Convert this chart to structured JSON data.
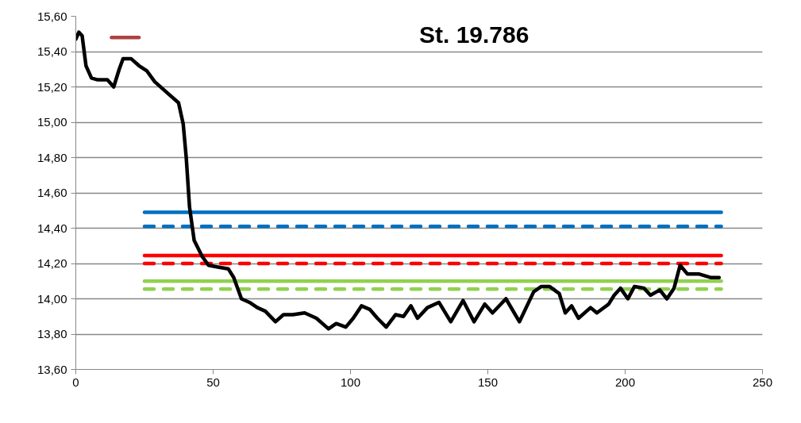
{
  "chart_data": {
    "type": "line",
    "title": "St. 19.786",
    "xlim": [
      0,
      250
    ],
    "ylim": [
      13.6,
      15.6
    ],
    "xticks": [
      0,
      50,
      100,
      150,
      200,
      250
    ],
    "yticks": [
      {
        "value": 13.6,
        "label": "13,60"
      },
      {
        "value": 13.8,
        "label": "13,80"
      },
      {
        "value": 14.0,
        "label": "14,00"
      },
      {
        "value": 14.2,
        "label": "14,20"
      },
      {
        "value": 14.4,
        "label": "14,40"
      },
      {
        "value": 14.6,
        "label": "14,60"
      },
      {
        "value": 14.8,
        "label": "14,80"
      },
      {
        "value": 15.0,
        "label": "15,00"
      },
      {
        "value": 15.2,
        "label": "15,20"
      },
      {
        "value": 15.4,
        "label": "15,40"
      },
      {
        "value": 15.6,
        "label": "15,60"
      }
    ],
    "grid": "y",
    "marker": "none",
    "series": [
      {
        "color": "#0070c0",
        "line_style": "solid",
        "x": [
          25,
          235
        ],
        "values": [
          14.49,
          14.49
        ]
      },
      {
        "color": "#0070c0",
        "line_style": "dashed",
        "x": [
          25,
          235
        ],
        "values": [
          14.41,
          14.41
        ]
      },
      {
        "color": "#ff0000",
        "line_style": "solid",
        "x": [
          25,
          235
        ],
        "values": [
          14.245,
          14.245
        ]
      },
      {
        "color": "#ff0000",
        "line_style": "dashed",
        "x": [
          25,
          235
        ],
        "values": [
          14.2,
          14.2
        ]
      },
      {
        "color": "#92d050",
        "line_style": "solid",
        "x": [
          25,
          235
        ],
        "values": [
          14.1,
          14.1
        ]
      },
      {
        "color": "#92d050",
        "line_style": "dashed",
        "x": [
          25,
          235
        ],
        "values": [
          14.055,
          14.055
        ]
      },
      {
        "color": "#b04040",
        "line_style": "solid",
        "x": [
          13,
          23
        ],
        "values": [
          15.48,
          15.48
        ]
      },
      {
        "color": "#000000",
        "line_style": "solid",
        "x": [
          0,
          1.1,
          2.3,
          3.7,
          5.7,
          8,
          11.5,
          13.8,
          15.8,
          17.2,
          20.1,
          23,
          25.9,
          28.7,
          33,
          37.4,
          39.1,
          40.2,
          41.4,
          43.1,
          46,
          48.3,
          51.7,
          55.5,
          57.5,
          60.3,
          63.2,
          66.1,
          69,
          72.7,
          75.6,
          79,
          83.3,
          87.6,
          92,
          94.8,
          98.3,
          101,
          104,
          107,
          109.8,
          113,
          116.4,
          119.3,
          122,
          124.4,
          128,
          132.2,
          136.5,
          141,
          145,
          148.9,
          151.7,
          156.6,
          161.5,
          166.7,
          169.5,
          172.4,
          176,
          178.2,
          180.5,
          183,
          187.4,
          189.7,
          194,
          196,
          198.3,
          201,
          203.4,
          206.9,
          209.2,
          212.6,
          215.2,
          217.8,
          220,
          222.7,
          227,
          231.3,
          234.2
        ],
        "values": [
          15.47,
          15.51,
          15.49,
          15.32,
          15.25,
          15.24,
          15.24,
          15.2,
          15.3,
          15.36,
          15.36,
          15.32,
          15.29,
          15.23,
          15.17,
          15.11,
          14.99,
          14.8,
          14.52,
          14.33,
          14.24,
          14.19,
          14.18,
          14.17,
          14.12,
          14.0,
          13.98,
          13.95,
          13.93,
          13.87,
          13.91,
          13.91,
          13.92,
          13.89,
          13.83,
          13.86,
          13.84,
          13.89,
          13.96,
          13.94,
          13.89,
          13.84,
          13.91,
          13.9,
          13.96,
          13.89,
          13.95,
          13.98,
          13.87,
          13.99,
          13.87,
          13.97,
          13.92,
          14.0,
          13.87,
          14.04,
          14.07,
          14.07,
          14.03,
          13.92,
          13.96,
          13.89,
          13.95,
          13.92,
          13.97,
          14.02,
          14.06,
          14.0,
          14.07,
          14.06,
          14.02,
          14.05,
          14.0,
          14.06,
          14.19,
          14.14,
          14.14,
          14.12,
          14.12
        ]
      }
    ]
  }
}
